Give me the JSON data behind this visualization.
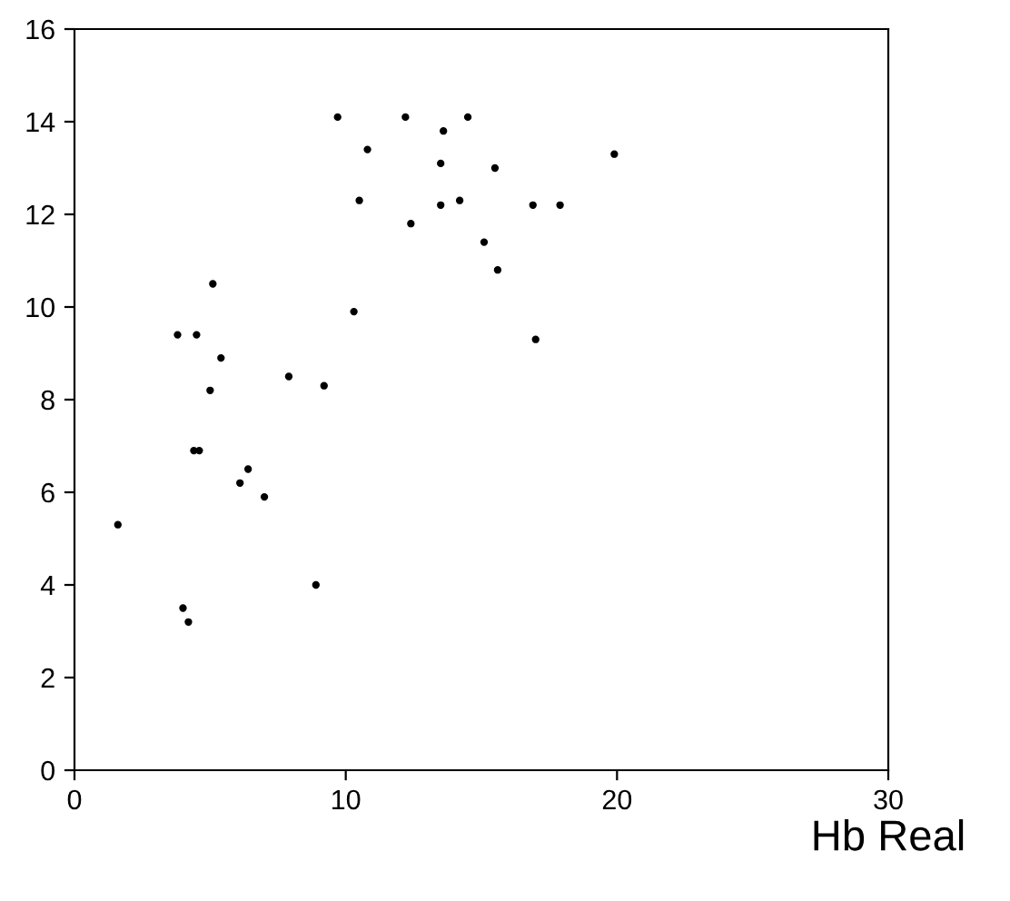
{
  "chart_data": {
    "type": "scatter",
    "xlabel": "Hb Real",
    "x": [
      1.6,
      3.8,
      4.5,
      5.1,
      5.4,
      5.0,
      4.0,
      4.2,
      4.4,
      4.6,
      6.1,
      6.4,
      7.0,
      7.9,
      9.2,
      8.9,
      9.7,
      10.3,
      10.5,
      10.8,
      12.2,
      12.4,
      13.5,
      13.6,
      13.5,
      14.2,
      14.5,
      15.1,
      15.5,
      15.6,
      16.9,
      17.0,
      17.9,
      19.9
    ],
    "series": [
      {
        "color": "#000000",
        "values": [
          5.3,
          9.4,
          9.4,
          10.5,
          8.9,
          8.2,
          3.5,
          3.2,
          6.9,
          6.9,
          6.2,
          6.5,
          5.9,
          8.5,
          8.3,
          4.0,
          14.1,
          9.9,
          12.3,
          13.4,
          14.1,
          11.8,
          12.2,
          13.8,
          13.1,
          12.3,
          14.1,
          11.4,
          13.0,
          10.8,
          12.2,
          9.3,
          12.2,
          13.3
        ]
      }
    ],
    "xlim": [
      0,
      30
    ],
    "ylim": [
      0,
      16
    ],
    "xticks": [
      0,
      10,
      20,
      30
    ],
    "yticks": [
      0,
      2,
      4,
      6,
      8,
      10,
      12,
      14,
      16
    ],
    "marker": "circle",
    "grid": false,
    "legend": false
  }
}
